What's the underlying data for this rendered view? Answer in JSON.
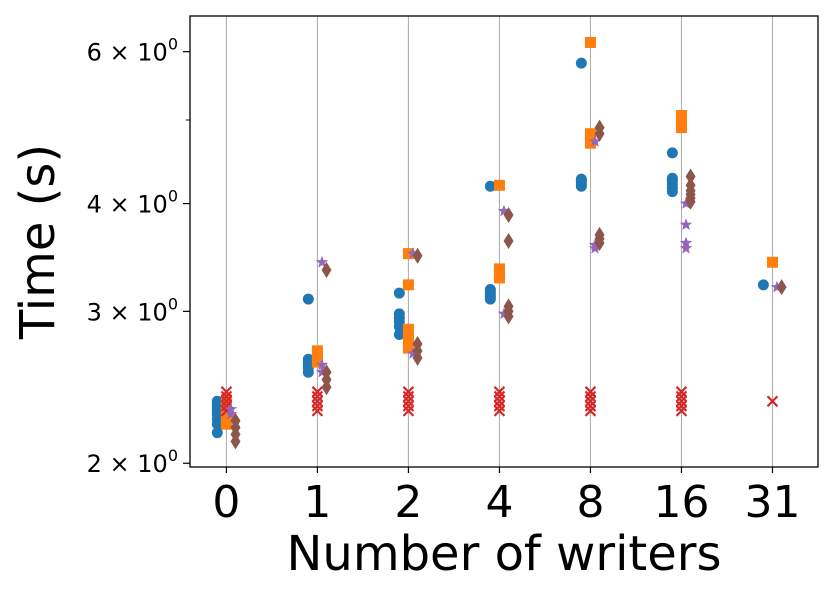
{
  "chart_data": {
    "type": "scatter",
    "xlabel": "Number of writers",
    "ylabel": "Time (s)",
    "y_scale": "log",
    "ylim": [
      1.98,
      6.6
    ],
    "grid": "vertical",
    "categories": [
      "0",
      "1",
      "2",
      "4",
      "8",
      "16",
      "31"
    ],
    "y_ticks": [
      {
        "value": 2,
        "mantissa": "2",
        "base": "10",
        "exp": "0"
      },
      {
        "value": 3,
        "mantissa": "3",
        "base": "10",
        "exp": "0"
      },
      {
        "value": 4,
        "mantissa": "4",
        "base": "10",
        "exp": "0"
      },
      {
        "value": 6,
        "mantissa": "6",
        "base": "10",
        "exp": "0"
      }
    ],
    "series": [
      {
        "marker": "circle",
        "color": "#1f77b4",
        "offset": -0.1,
        "points": [
          [
            "0",
            2.17
          ],
          [
            "0",
            2.22
          ],
          [
            "0",
            2.25
          ],
          [
            "0",
            2.28
          ],
          [
            "0",
            2.3
          ],
          [
            "0",
            2.32
          ],
          [
            "0",
            2.34
          ],
          [
            "0",
            2.36
          ],
          [
            "1",
            2.55
          ],
          [
            "1",
            2.58
          ],
          [
            "1",
            2.6
          ],
          [
            "1",
            2.62
          ],
          [
            "1",
            2.64
          ],
          [
            "1",
            3.1
          ],
          [
            "2",
            2.82
          ],
          [
            "2",
            2.88
          ],
          [
            "2",
            2.92
          ],
          [
            "2",
            2.95
          ],
          [
            "2",
            2.98
          ],
          [
            "2",
            3.15
          ],
          [
            "4",
            3.1
          ],
          [
            "4",
            3.12
          ],
          [
            "4",
            3.14
          ],
          [
            "4",
            3.16
          ],
          [
            "4",
            3.18
          ],
          [
            "4",
            4.19
          ],
          [
            "8",
            4.19
          ],
          [
            "8",
            4.22
          ],
          [
            "8",
            4.25
          ],
          [
            "8",
            4.27
          ],
          [
            "8",
            5.82
          ],
          [
            "16",
            4.13
          ],
          [
            "16",
            4.17
          ],
          [
            "16",
            4.21
          ],
          [
            "16",
            4.25
          ],
          [
            "16",
            4.28
          ],
          [
            "16",
            4.58
          ],
          [
            "31",
            3.22
          ]
        ]
      },
      {
        "marker": "square",
        "color": "#ff7f0e",
        "offset": 0.0,
        "points": [
          [
            "0",
            2.22
          ],
          [
            "0",
            2.26
          ],
          [
            "0",
            2.3
          ],
          [
            "0",
            2.34
          ],
          [
            "0",
            2.37
          ],
          [
            "1",
            2.62
          ],
          [
            "1",
            2.66
          ],
          [
            "1",
            2.7
          ],
          [
            "2",
            2.72
          ],
          [
            "2",
            2.77
          ],
          [
            "2",
            2.82
          ],
          [
            "2",
            2.86
          ],
          [
            "2",
            3.22
          ],
          [
            "2",
            3.5
          ],
          [
            "4",
            3.28
          ],
          [
            "4",
            3.32
          ],
          [
            "4",
            3.36
          ],
          [
            "4",
            4.2
          ],
          [
            "8",
            4.7
          ],
          [
            "8",
            4.76
          ],
          [
            "8",
            4.82
          ],
          [
            "8",
            6.15
          ],
          [
            "16",
            4.9
          ],
          [
            "16",
            4.98
          ],
          [
            "16",
            5.06
          ],
          [
            "31",
            3.42
          ]
        ]
      },
      {
        "marker": "x",
        "color": "#d62728",
        "offset": 0.0,
        "points": [
          [
            "0",
            2.3
          ],
          [
            "0",
            2.33
          ],
          [
            "0",
            2.36
          ],
          [
            "0",
            2.39
          ],
          [
            "0",
            2.42
          ],
          [
            "1",
            2.3
          ],
          [
            "1",
            2.33
          ],
          [
            "1",
            2.36
          ],
          [
            "1",
            2.39
          ],
          [
            "1",
            2.42
          ],
          [
            "2",
            2.3
          ],
          [
            "2",
            2.33
          ],
          [
            "2",
            2.36
          ],
          [
            "2",
            2.39
          ],
          [
            "2",
            2.42
          ],
          [
            "4",
            2.3
          ],
          [
            "4",
            2.33
          ],
          [
            "4",
            2.36
          ],
          [
            "4",
            2.39
          ],
          [
            "4",
            2.42
          ],
          [
            "8",
            2.3
          ],
          [
            "8",
            2.33
          ],
          [
            "8",
            2.36
          ],
          [
            "8",
            2.39
          ],
          [
            "8",
            2.42
          ],
          [
            "16",
            2.3
          ],
          [
            "16",
            2.33
          ],
          [
            "16",
            2.36
          ],
          [
            "16",
            2.39
          ],
          [
            "16",
            2.42
          ],
          [
            "31",
            2.36
          ]
        ]
      },
      {
        "marker": "star",
        "color": "#9467bd",
        "offset": 0.05,
        "points": [
          [
            "0",
            2.28
          ],
          [
            "0",
            2.31
          ],
          [
            "1",
            2.55
          ],
          [
            "1",
            2.6
          ],
          [
            "1",
            3.42
          ],
          [
            "2",
            2.68
          ],
          [
            "2",
            3.5
          ],
          [
            "4",
            2.98
          ],
          [
            "4",
            3.92
          ],
          [
            "8",
            3.55
          ],
          [
            "8",
            3.58
          ],
          [
            "8",
            4.72
          ],
          [
            "16",
            3.55
          ],
          [
            "16",
            3.6
          ],
          [
            "16",
            3.78
          ],
          [
            "16",
            4.0
          ],
          [
            "31",
            3.2
          ]
        ]
      },
      {
        "marker": "diamond",
        "color": "#8c564b",
        "offset": 0.1,
        "points": [
          [
            "0",
            2.12
          ],
          [
            "0",
            2.16
          ],
          [
            "0",
            2.2
          ],
          [
            "0",
            2.24
          ],
          [
            "1",
            2.45
          ],
          [
            "1",
            2.5
          ],
          [
            "1",
            2.55
          ],
          [
            "1",
            3.35
          ],
          [
            "2",
            2.65
          ],
          [
            "2",
            2.7
          ],
          [
            "2",
            2.75
          ],
          [
            "2",
            3.48
          ],
          [
            "4",
            2.96
          ],
          [
            "4",
            3.0
          ],
          [
            "4",
            3.04
          ],
          [
            "4",
            3.62
          ],
          [
            "4",
            3.88
          ],
          [
            "8",
            3.6
          ],
          [
            "8",
            3.64
          ],
          [
            "8",
            3.68
          ],
          [
            "8",
            4.82
          ],
          [
            "8",
            4.9
          ],
          [
            "16",
            4.02
          ],
          [
            "16",
            4.06
          ],
          [
            "16",
            4.1
          ],
          [
            "16",
            4.14
          ],
          [
            "16",
            4.2
          ],
          [
            "16",
            4.3
          ],
          [
            "31",
            3.2
          ]
        ]
      }
    ]
  }
}
